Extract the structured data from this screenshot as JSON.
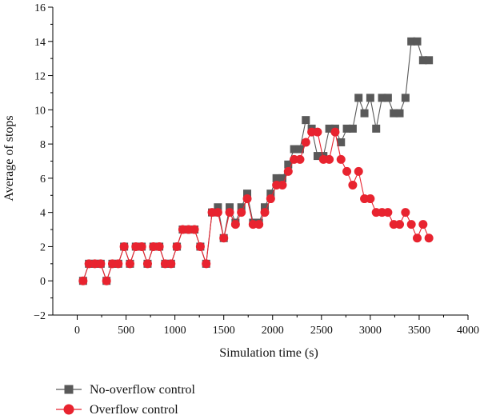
{
  "chart_data": {
    "type": "line",
    "xlabel": "Simulation time (s)",
    "ylabel": "Average of stops",
    "xlim": [
      -250,
      4000
    ],
    "ylim": [
      -2,
      16
    ],
    "xticks": [
      0,
      500,
      1000,
      1500,
      2000,
      2500,
      3000,
      3500,
      4000
    ],
    "yticks": [
      -2,
      0,
      2,
      4,
      6,
      8,
      10,
      12,
      14,
      16
    ],
    "grid": false,
    "legend_position": "bottom-left",
    "series": [
      {
        "name": "No-overflow control",
        "color": "#595959",
        "marker": "square",
        "x": [
          60,
          120,
          180,
          240,
          300,
          360,
          420,
          480,
          540,
          600,
          660,
          720,
          780,
          840,
          900,
          960,
          1020,
          1080,
          1140,
          1200,
          1260,
          1320,
          1380,
          1440,
          1500,
          1560,
          1620,
          1680,
          1740,
          1800,
          1860,
          1920,
          1980,
          2040,
          2100,
          2160,
          2220,
          2280,
          2340,
          2400,
          2460,
          2520,
          2580,
          2640,
          2700,
          2760,
          2820,
          2880,
          2940,
          3000,
          3060,
          3120,
          3180,
          3240,
          3300,
          3360,
          3420,
          3480,
          3540,
          3600
        ],
        "values": [
          0,
          1,
          1,
          1,
          0,
          1,
          1,
          2,
          1,
          2,
          2,
          1,
          2,
          2,
          1,
          1,
          2,
          3,
          3,
          3,
          2,
          1,
          4,
          4.3,
          2.5,
          4.3,
          3.4,
          4.3,
          5.1,
          3.4,
          3.4,
          4.3,
          5.1,
          6,
          6,
          6.8,
          7.7,
          7.7,
          9.4,
          8.9,
          7.3,
          7.3,
          8.9,
          8.9,
          8.1,
          8.9,
          8.9,
          10.7,
          9.8,
          10.7,
          8.9,
          10.7,
          10.7,
          9.8,
          9.8,
          10.7,
          14,
          14,
          12.9,
          12.9
        ]
      },
      {
        "name": "Overflow control",
        "color": "#e8232f",
        "marker": "circle",
        "x": [
          60,
          120,
          180,
          240,
          300,
          360,
          420,
          480,
          540,
          600,
          660,
          720,
          780,
          840,
          900,
          960,
          1020,
          1080,
          1140,
          1200,
          1260,
          1320,
          1380,
          1440,
          1500,
          1560,
          1620,
          1680,
          1740,
          1800,
          1860,
          1920,
          1980,
          2040,
          2100,
          2160,
          2220,
          2280,
          2340,
          2400,
          2460,
          2520,
          2580,
          2640,
          2700,
          2760,
          2820,
          2880,
          2940,
          3000,
          3060,
          3120,
          3180,
          3240,
          3300,
          3360,
          3420,
          3480,
          3540,
          3600
        ],
        "values": [
          0,
          1,
          1,
          1,
          0,
          1,
          1,
          2,
          1,
          2,
          2,
          1,
          2,
          2,
          1,
          1,
          2,
          3,
          3,
          3,
          2,
          1,
          4,
          4,
          2.5,
          4,
          3.3,
          4,
          4.8,
          3.3,
          3.3,
          4,
          4.8,
          5.6,
          5.6,
          6.4,
          7.1,
          7.1,
          8.1,
          8.7,
          8.7,
          7.1,
          7.1,
          8.7,
          7.1,
          6.4,
          5.6,
          6.4,
          4.8,
          4.8,
          4,
          4,
          4,
          3.3,
          3.3,
          4,
          3.3,
          2.5,
          3.3,
          2.5
        ]
      }
    ]
  }
}
